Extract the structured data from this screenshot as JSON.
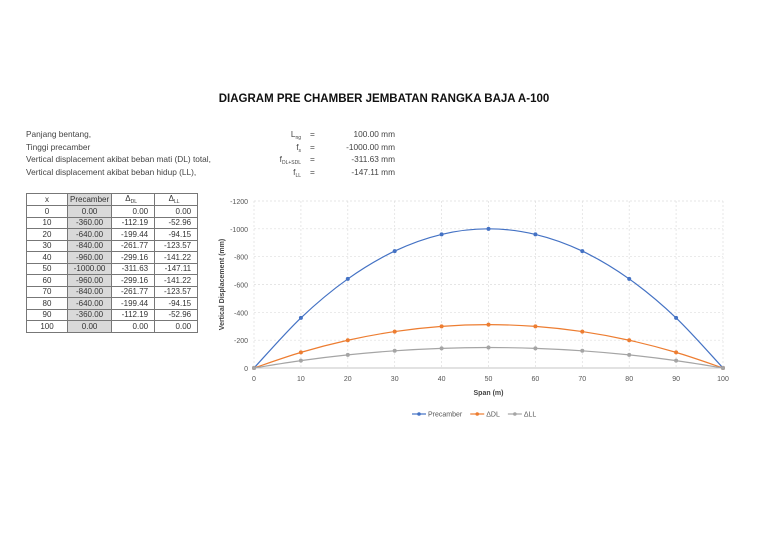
{
  "title": "DIAGRAM PRE CHAMBER JEMBATAN RANGKA BAJA  A-100",
  "info": [
    {
      "label": "Panjang bentang,",
      "sym": "L",
      "sub": "ng",
      "eq": "=",
      "value": "100.00 mm"
    },
    {
      "label": "Tinggi precamber",
      "sym": "f",
      "sub": "s",
      "eq": "=",
      "value": "-1000.00 mm"
    },
    {
      "label": "Vertical displacement akibat beban mati (DL) total,",
      "sym": "f",
      "sub": "DL+SDL",
      "eq": "=",
      "value": "-311.63 mm"
    },
    {
      "label": "Vertical displacement akibat beban hidup (LL),",
      "sym": "f",
      "sub": "LL",
      "eq": "=",
      "value": "-147.11 mm"
    }
  ],
  "table": {
    "headers": [
      {
        "t": "x",
        "s": ""
      },
      {
        "t": "Precamber",
        "s": ""
      },
      {
        "t": "Δ",
        "s": "DL"
      },
      {
        "t": "Δ",
        "s": "LL"
      }
    ],
    "rows": [
      [
        "0",
        "0.00",
        "0.00",
        "0.00"
      ],
      [
        "10",
        "-360.00",
        "-112.19",
        "-52.96"
      ],
      [
        "20",
        "-640.00",
        "-199.44",
        "-94.15"
      ],
      [
        "30",
        "-840.00",
        "-261.77",
        "-123.57"
      ],
      [
        "40",
        "-960.00",
        "-299.16",
        "-141.22"
      ],
      [
        "50",
        "-1000.00",
        "-311.63",
        "-147.11"
      ],
      [
        "60",
        "-960.00",
        "-299.16",
        "-141.22"
      ],
      [
        "70",
        "-840.00",
        "-261.77",
        "-123.57"
      ],
      [
        "80",
        "-640.00",
        "-199.44",
        "-94.15"
      ],
      [
        "90",
        "-360.00",
        "-112.19",
        "-52.96"
      ],
      [
        "100",
        "0.00",
        "0.00",
        "0.00"
      ]
    ]
  },
  "chart_data": {
    "type": "line",
    "xlabel": "Span (m)",
    "ylabel": "Vertical Displacement (mm)",
    "x": [
      0,
      10,
      20,
      30,
      40,
      50,
      60,
      70,
      80,
      90,
      100
    ],
    "xlim": [
      0,
      100
    ],
    "ylim": [
      0,
      -1200
    ],
    "xticks": [
      "0",
      "10",
      "20",
      "30",
      "40",
      "50",
      "60",
      "70",
      "80",
      "90",
      "100"
    ],
    "yticks": [
      "0",
      "-200",
      "-400",
      "-600",
      "-800",
      "-1000",
      "-1200"
    ],
    "ytick_values": [
      0,
      -200,
      -400,
      -600,
      -800,
      -1000,
      -1200
    ],
    "grid": true,
    "legend": "bottom",
    "series": [
      {
        "name": "Precamber",
        "color": "#4472c4",
        "values": [
          0,
          -360,
          -640,
          -840,
          -960,
          -1000,
          -960,
          -840,
          -640,
          -360,
          0
        ]
      },
      {
        "name": "ΔDL",
        "color": "#ed7d31",
        "values": [
          0,
          -112.19,
          -199.44,
          -261.77,
          -299.16,
          -311.63,
          -299.16,
          -261.77,
          -199.44,
          -112.19,
          0
        ]
      },
      {
        "name": "ΔLL",
        "color": "#a5a5a5",
        "values": [
          0,
          -52.96,
          -94.15,
          -123.57,
          -141.22,
          -147.11,
          -141.22,
          -123.57,
          -94.15,
          -52.96,
          0
        ]
      }
    ]
  }
}
